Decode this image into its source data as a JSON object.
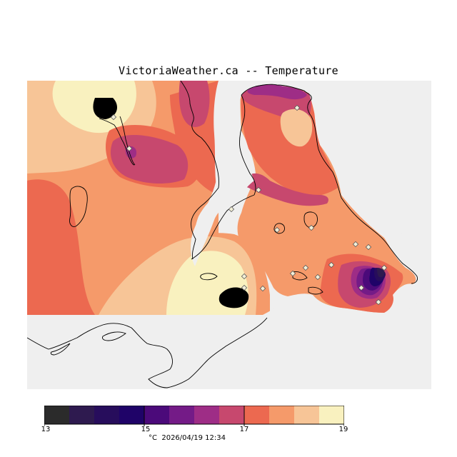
{
  "title": "VictoriaWeather.ca -- Temperature",
  "legend": {
    "unit": "°C",
    "timestamp": "2026/04/19 12:34",
    "min": 13,
    "max": 19,
    "tick_labels": [
      "13",
      "15",
      "17",
      "19"
    ],
    "bins": [
      {
        "from": 13.0,
        "to": 13.5,
        "color": "#2b2b2b"
      },
      {
        "from": 13.5,
        "to": 14.0,
        "color": "#2e1a4f"
      },
      {
        "from": 14.0,
        "to": 14.5,
        "color": "#270d5c"
      },
      {
        "from": 14.5,
        "to": 15.0,
        "color": "#1f0368"
      },
      {
        "from": 15.0,
        "to": 15.5,
        "color": "#4b0a7a"
      },
      {
        "from": 15.5,
        "to": 16.0,
        "color": "#741b87"
      },
      {
        "from": 16.0,
        "to": 16.5,
        "color": "#9e2d86"
      },
      {
        "from": 16.5,
        "to": 17.0,
        "color": "#c7486e"
      },
      {
        "from": 17.0,
        "to": 17.5,
        "color": "#ec6950"
      },
      {
        "from": 17.5,
        "to": 18.0,
        "color": "#f59a6a"
      },
      {
        "from": 18.0,
        "to": 18.5,
        "color": "#f7c597"
      },
      {
        "from": 18.5,
        "to": 19.0,
        "color": "#f9f1bf"
      }
    ]
  },
  "colors": {
    "no_data": "#efefef",
    "coast": "#000000",
    "station_fill": "#f2efd8",
    "station_stroke": "#555555"
  }
}
